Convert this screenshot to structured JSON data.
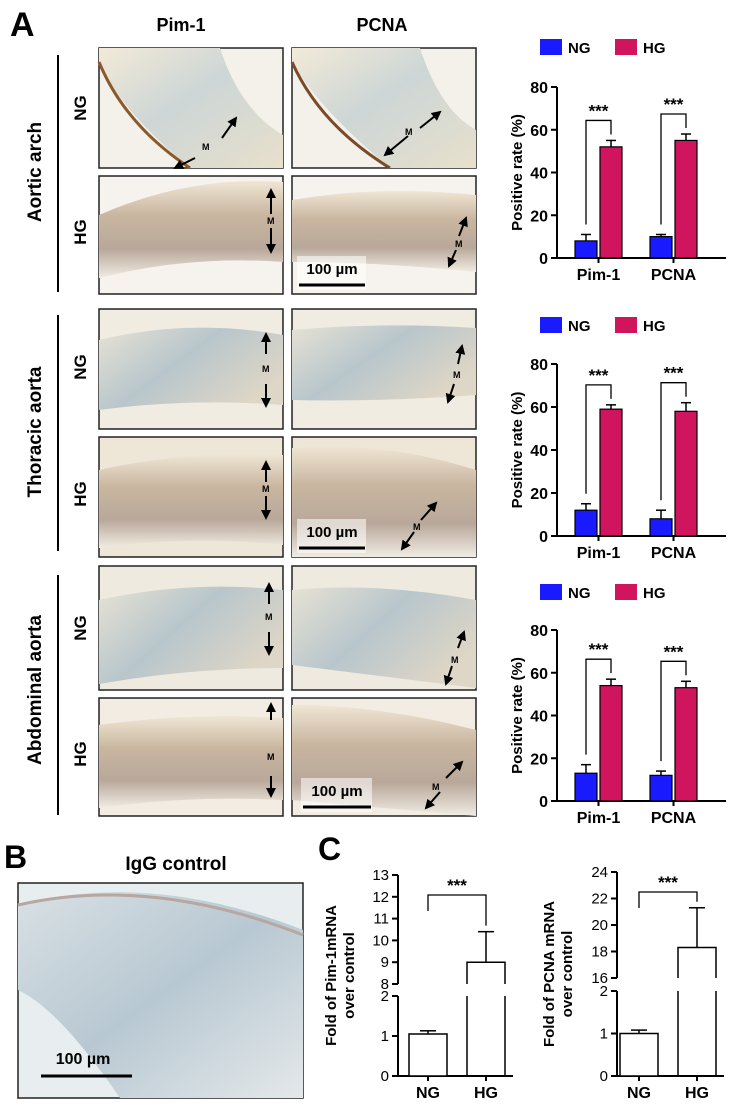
{
  "panels": {
    "A": {
      "letter": "A",
      "col_headers": [
        "Pim-1",
        "PCNA"
      ],
      "groups": [
        "Aortic arch",
        "Thoracic aorta",
        "Abdominal aorta"
      ],
      "row_labels": [
        "NG",
        "HG"
      ],
      "scale_bar": "100 µm",
      "layer_mark": "M"
    },
    "B": {
      "letter": "B",
      "title": "IgG control",
      "scale_bar": "100 µm"
    },
    "C": {
      "letter": "C"
    }
  },
  "colors": {
    "NG": "#1a1aff",
    "HG": "#d0145e"
  },
  "chart_data": [
    {
      "type": "bar",
      "panel": "A-aortic-arch",
      "categories": [
        "Pim-1",
        "PCNA"
      ],
      "series": [
        {
          "name": "NG",
          "values": [
            8,
            10
          ],
          "errors": [
            3,
            1
          ]
        },
        {
          "name": "HG",
          "values": [
            52,
            55
          ],
          "errors": [
            3,
            3
          ]
        }
      ],
      "ylabel": "Positive rate (%)",
      "ylim": [
        0,
        80
      ],
      "yticks": [
        0,
        20,
        40,
        60,
        80
      ],
      "significance": [
        "***",
        "***"
      ],
      "legend": "top"
    },
    {
      "type": "bar",
      "panel": "A-thoracic-aorta",
      "categories": [
        "Pim-1",
        "PCNA"
      ],
      "series": [
        {
          "name": "NG",
          "values": [
            12,
            8
          ],
          "errors": [
            3,
            4
          ]
        },
        {
          "name": "HG",
          "values": [
            59,
            58
          ],
          "errors": [
            2,
            4
          ]
        }
      ],
      "ylabel": "Positive rate (%)",
      "ylim": [
        0,
        80
      ],
      "yticks": [
        0,
        20,
        40,
        60,
        80
      ],
      "significance": [
        "***",
        "***"
      ],
      "legend": "top"
    },
    {
      "type": "bar",
      "panel": "A-abdominal-aorta",
      "categories": [
        "Pim-1",
        "PCNA"
      ],
      "series": [
        {
          "name": "NG",
          "values": [
            13,
            12
          ],
          "errors": [
            4,
            2
          ]
        },
        {
          "name": "HG",
          "values": [
            54,
            53
          ],
          "errors": [
            3,
            3
          ]
        }
      ],
      "ylabel": "Positive rate (%)",
      "ylim": [
        0,
        80
      ],
      "yticks": [
        0,
        20,
        40,
        60,
        80
      ],
      "significance": [
        "***",
        "***"
      ],
      "legend": "top"
    },
    {
      "type": "bar",
      "panel": "C-left",
      "categories": [
        "NG",
        "HG"
      ],
      "values": [
        1.05,
        9.0
      ],
      "errors": [
        0.08,
        1.4
      ],
      "ylabel": "Fold of Pim-1mRNA over control",
      "y_break": {
        "lower": [
          0,
          2
        ],
        "upper": [
          8,
          13
        ]
      },
      "yticks_lower": [
        0,
        1,
        2
      ],
      "yticks_upper": [
        8,
        9,
        10,
        11,
        12,
        13
      ],
      "significance": "***"
    },
    {
      "type": "bar",
      "panel": "C-right",
      "categories": [
        "NG",
        "HG"
      ],
      "values": [
        1.0,
        18.3
      ],
      "errors": [
        0.08,
        3.0
      ],
      "ylabel": "Fold of PCNA mRNA over control",
      "y_break": {
        "lower": [
          0,
          2
        ],
        "upper": [
          16,
          24
        ]
      },
      "yticks_lower": [
        0,
        1,
        2
      ],
      "yticks_upper": [
        16,
        18,
        20,
        22,
        24
      ],
      "significance": "***"
    }
  ]
}
